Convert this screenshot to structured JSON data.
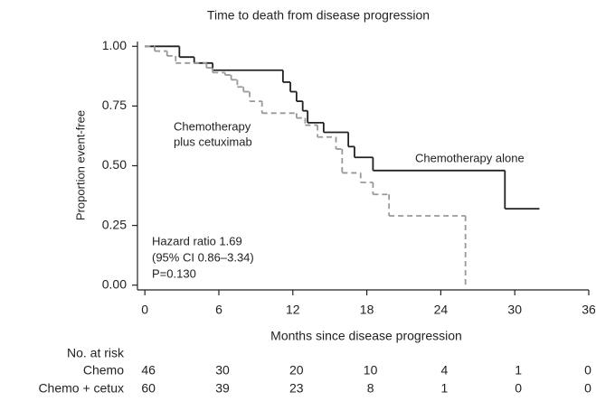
{
  "chart_data": {
    "type": "step",
    "title": "Time to death from disease progression",
    "xlabel": "Months since disease progression",
    "ylabel": "Proportion event-free",
    "xlim": [
      -0.6,
      36
    ],
    "ylim": [
      -0.02,
      1.02
    ],
    "xticks": [
      0,
      6,
      12,
      18,
      24,
      30,
      36
    ],
    "yticks": [
      {
        "value": 0,
        "label": "0.00"
      },
      {
        "value": 0.25,
        "label": "0.25"
      },
      {
        "value": 0.5,
        "label": "0.50"
      },
      {
        "value": 0.75,
        "label": "0.75"
      },
      {
        "value": 1,
        "label": "1.00"
      }
    ],
    "series": [
      {
        "name": "Chemotherapy alone",
        "color": "#222222",
        "dash": false,
        "x": [
          0,
          2.8,
          4,
          5.5,
          11.2,
          11.8,
          12.3,
          12.8,
          13.2,
          14.5,
          16.5,
          17,
          18.5,
          29.2,
          32
        ],
        "values": [
          1,
          0.955,
          0.93,
          0.9,
          0.85,
          0.81,
          0.77,
          0.73,
          0.68,
          0.64,
          0.58,
          0.535,
          0.48,
          0.32,
          0.32
        ]
      },
      {
        "name": "Chemotherapy plus cetuximab",
        "color": "#999999",
        "dash": true,
        "x": [
          0,
          0.8,
          1.8,
          2.5,
          5,
          5.5,
          6.5,
          7,
          7.5,
          8,
          8.5,
          9.5,
          12.3,
          13,
          14,
          15.5,
          16,
          17.5,
          18.5,
          19.8,
          26,
          26
        ],
        "values": [
          1,
          0.98,
          0.96,
          0.93,
          0.91,
          0.89,
          0.88,
          0.86,
          0.83,
          0.81,
          0.77,
          0.72,
          0.7,
          0.67,
          0.62,
          0.57,
          0.47,
          0.43,
          0.38,
          0.29,
          0,
          0
        ]
      }
    ],
    "annotations": {
      "cetux_label": [
        "Chemotherapy",
        "plus cetuximab"
      ],
      "chemo_label": "Chemotherapy alone",
      "stats": [
        "Hazard ratio 1.69",
        "(95% CI 0.86–3.34)",
        "P=0.130"
      ]
    },
    "risk_table": {
      "title": "No. at risk",
      "rows": [
        {
          "label": "Chemo",
          "values": [
            46,
            30,
            20,
            10,
            4,
            1,
            0
          ]
        },
        {
          "label": "Chemo + cetux",
          "values": [
            60,
            39,
            23,
            8,
            1,
            0,
            0
          ]
        }
      ]
    }
  }
}
